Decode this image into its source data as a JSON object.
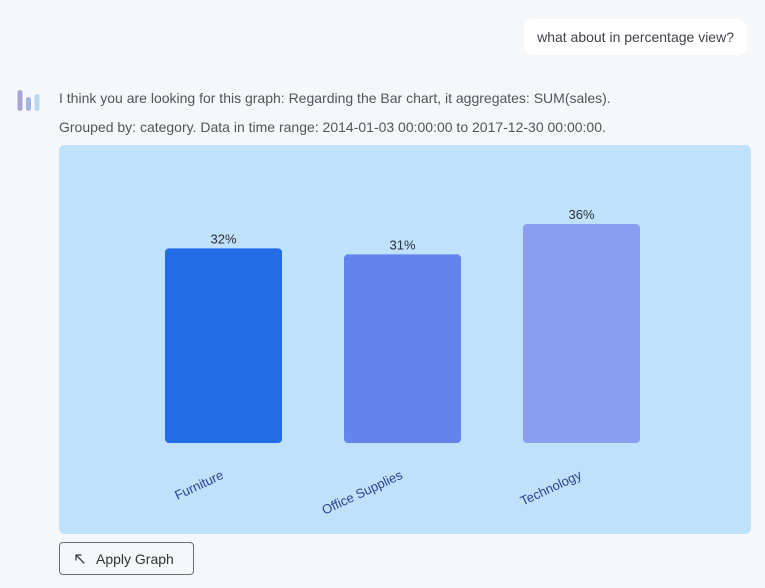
{
  "user_message": "what about in percentage view?",
  "assistant": {
    "line1": "I think you are looking for this graph:  Regarding the Bar chart,  it aggregates: SUM(sales).",
    "line2": "Grouped by: category.  Data in time range: 2014-01-03 00:00:00 to 2017-12-30 00:00:00."
  },
  "apply_button": {
    "label": "Apply Graph",
    "icon": "arrow-up-left-icon"
  },
  "colors": {
    "chart_background": "#c0e1fb",
    "bars": [
      "#226ce6",
      "#6383ee",
      "#8a9df0"
    ],
    "tick_label": "#2b3f8f"
  },
  "chart_data": {
    "type": "bar",
    "categories": [
      "Furniture",
      "Office Supplies",
      "Technology"
    ],
    "values": [
      32,
      31,
      36
    ],
    "data_labels": [
      "32%",
      "31%",
      "36%"
    ],
    "unit": "%",
    "title": "",
    "xlabel": "",
    "ylabel": "",
    "ylim": [
      0,
      36
    ],
    "grid": false,
    "legend": "none"
  }
}
